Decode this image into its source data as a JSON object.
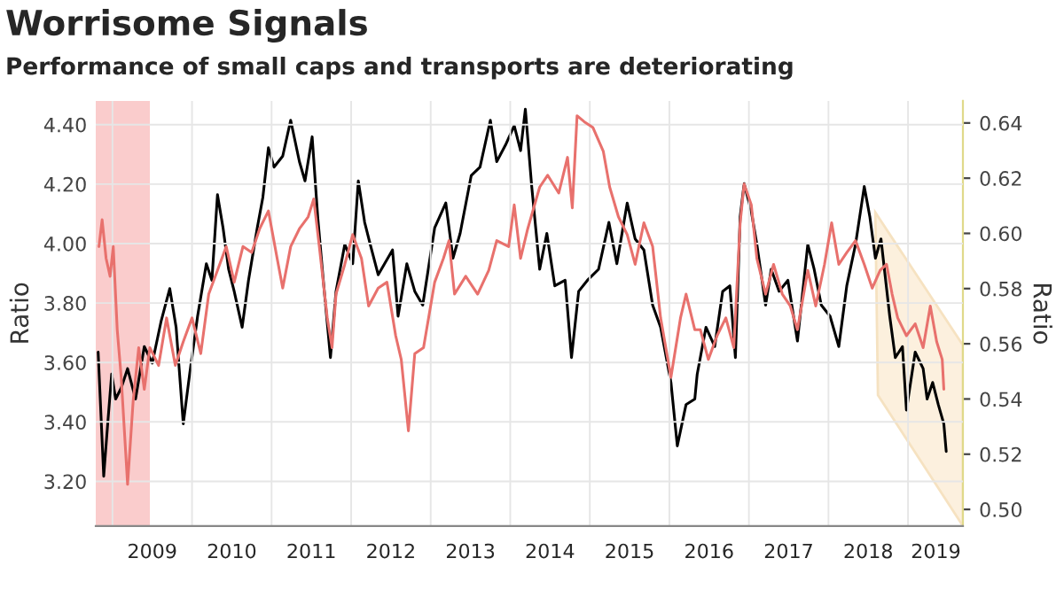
{
  "chart_data": {
    "type": "line",
    "title": "Worrisome Signals",
    "subtitle": "Performance of small caps and transports are deteriorating",
    "ylabel": "Ratio",
    "y2label": "Ratio",
    "xlim": [
      2008.79,
      2019.69
    ],
    "xticks": [
      {
        "value": 2009,
        "label": null
      },
      {
        "value": 2009.5,
        "label": "2009"
      },
      {
        "value": 2010,
        "label": null
      },
      {
        "value": 2010.5,
        "label": "2010"
      },
      {
        "value": 2011,
        "label": null
      },
      {
        "value": 2011.5,
        "label": "2011"
      },
      {
        "value": 2012,
        "label": null
      },
      {
        "value": 2012.5,
        "label": "2012"
      },
      {
        "value": 2013,
        "label": null
      },
      {
        "value": 2013.5,
        "label": "2013"
      },
      {
        "value": 2014,
        "label": null
      },
      {
        "value": 2014.5,
        "label": "2014"
      },
      {
        "value": 2015,
        "label": null
      },
      {
        "value": 2015.5,
        "label": "2015"
      },
      {
        "value": 2016,
        "label": null
      },
      {
        "value": 2016.5,
        "label": "2016"
      },
      {
        "value": 2017,
        "label": null
      },
      {
        "value": 2017.5,
        "label": "2017"
      },
      {
        "value": 2018,
        "label": null
      },
      {
        "value": 2018.5,
        "label": "2018"
      },
      {
        "value": 2019,
        "label": null
      },
      {
        "value": 2019.35,
        "label": "2019"
      }
    ],
    "ylim": [
      3.05,
      4.48
    ],
    "yticks": [
      {
        "value": 3.2,
        "label": "3.20"
      },
      {
        "value": 3.4,
        "label": "3.40"
      },
      {
        "value": 3.6,
        "label": "3.60"
      },
      {
        "value": 3.8,
        "label": "3.80"
      },
      {
        "value": 4.0,
        "label": "4.00"
      },
      {
        "value": 4.2,
        "label": "4.20"
      },
      {
        "value": 4.4,
        "label": "4.40"
      }
    ],
    "y2lim": [
      0.494,
      0.648
    ],
    "y2ticks": [
      {
        "value": 0.5,
        "label": "0.50"
      },
      {
        "value": 0.52,
        "label": "0.52"
      },
      {
        "value": 0.54,
        "label": "0.54"
      },
      {
        "value": 0.56,
        "label": "0.56"
      },
      {
        "value": 0.58,
        "label": "0.58"
      },
      {
        "value": 0.6,
        "label": "0.60"
      },
      {
        "value": 0.62,
        "label": "0.62"
      },
      {
        "value": 0.64,
        "label": "0.64"
      }
    ],
    "bands": [
      {
        "axis": "x",
        "from": 2008.79,
        "to": 2009.47,
        "color": "#f6a3a3"
      }
    ],
    "grid": true,
    "marker": "none",
    "line_style": "solid",
    "series": [
      {
        "color": "#e8716d",
        "x": [
          2008.83,
          2008.87,
          2008.92,
          2008.97,
          2009.01,
          2009.06,
          2009.11,
          2009.19,
          2009.26,
          2009.33,
          2009.4,
          2009.47,
          2009.58,
          2009.68,
          2009.79,
          2009.89,
          2010.0,
          2010.11,
          2010.21,
          2010.32,
          2010.43,
          2010.53,
          2010.64,
          2010.75,
          2010.85,
          2010.96,
          2011.07,
          2011.14,
          2011.24,
          2011.35,
          2011.46,
          2011.53,
          2011.6,
          2011.7,
          2011.76,
          2011.81,
          2011.92,
          2012.02,
          2012.13,
          2012.22,
          2012.34,
          2012.45,
          2012.56,
          2012.63,
          2012.72,
          2012.8,
          2012.91,
          2013.05,
          2013.16,
          2013.23,
          2013.3,
          2013.44,
          2013.59,
          2013.73,
          2013.83,
          2013.98,
          2014.05,
          2014.13,
          2014.22,
          2014.37,
          2014.47,
          2014.61,
          2014.72,
          2014.78,
          2014.84,
          2014.93,
          2015.04,
          2015.17,
          2015.25,
          2015.36,
          2015.47,
          2015.57,
          2015.68,
          2015.79,
          2015.89,
          2016.02,
          2016.14,
          2016.21,
          2016.32,
          2016.39,
          2016.49,
          2016.6,
          2016.71,
          2016.81,
          2016.89,
          2016.94,
          2017.03,
          2017.1,
          2017.21,
          2017.31,
          2017.42,
          2017.52,
          2017.61,
          2017.74,
          2017.84,
          2017.95,
          2018.04,
          2018.13,
          2018.23,
          2018.34,
          2018.45,
          2018.55,
          2018.65,
          2018.73,
          2018.8,
          2018.87,
          2018.98,
          2019.09,
          2019.19,
          2019.28,
          2019.36,
          2019.43,
          2019.45
        ],
        "values": [
          3.99,
          4.08,
          3.95,
          3.89,
          3.99,
          3.71,
          3.55,
          3.19,
          3.47,
          3.65,
          3.51,
          3.65,
          3.59,
          3.75,
          3.59,
          3.67,
          3.75,
          3.63,
          3.83,
          3.91,
          3.99,
          3.87,
          3.99,
          3.97,
          4.05,
          4.11,
          3.95,
          3.85,
          3.99,
          4.05,
          4.09,
          4.15,
          3.99,
          3.75,
          3.65,
          3.83,
          3.93,
          4.03,
          3.95,
          3.79,
          3.85,
          3.87,
          3.69,
          3.61,
          3.37,
          3.63,
          3.65,
          3.87,
          3.95,
          4.01,
          3.83,
          3.89,
          3.83,
          3.91,
          4.01,
          3.99,
          4.13,
          3.95,
          4.05,
          4.19,
          4.23,
          4.17,
          4.29,
          4.12,
          4.43,
          4.41,
          4.39,
          4.31,
          4.19,
          4.09,
          4.03,
          3.93,
          4.07,
          3.99,
          3.75,
          3.55,
          3.75,
          3.83,
          3.71,
          3.71,
          3.61,
          3.69,
          3.75,
          3.65,
          4.07,
          4.2,
          4.13,
          3.95,
          3.83,
          3.93,
          3.83,
          3.79,
          3.71,
          3.91,
          3.79,
          3.93,
          4.07,
          3.93,
          3.97,
          4.01,
          3.93,
          3.85,
          3.91,
          3.93,
          3.83,
          3.75,
          3.69,
          3.73,
          3.65,
          3.79,
          3.67,
          3.61,
          3.51
        ]
      },
      {
        "color": "#000000",
        "axis": "y2",
        "x": [
          2008.82,
          2008.89,
          2008.94,
          2008.99,
          2009.04,
          2009.11,
          2009.19,
          2009.29,
          2009.4,
          2009.5,
          2009.61,
          2009.72,
          2009.8,
          2009.89,
          2009.97,
          2010.07,
          2010.18,
          2010.25,
          2010.32,
          2010.39,
          2010.46,
          2010.53,
          2010.63,
          2010.71,
          2010.82,
          2010.89,
          2010.96,
          2011.03,
          2011.14,
          2011.24,
          2011.35,
          2011.42,
          2011.51,
          2011.58,
          2011.65,
          2011.74,
          2011.81,
          2011.92,
          2012.02,
          2012.09,
          2012.17,
          2012.24,
          2012.34,
          2012.52,
          2012.59,
          2012.7,
          2012.8,
          2012.9,
          2013.05,
          2013.19,
          2013.28,
          2013.37,
          2013.51,
          2013.62,
          2013.75,
          2013.83,
          2013.94,
          2014.05,
          2014.13,
          2014.19,
          2014.27,
          2014.37,
          2014.46,
          2014.56,
          2014.69,
          2014.77,
          2014.86,
          2014.97,
          2015.11,
          2015.24,
          2015.34,
          2015.47,
          2015.57,
          2015.68,
          2015.79,
          2015.89,
          2016.02,
          2016.1,
          2016.21,
          2016.32,
          2016.35,
          2016.46,
          2016.57,
          2016.67,
          2016.76,
          2016.83,
          2016.89,
          2016.94,
          2017.03,
          2017.1,
          2017.21,
          2017.28,
          2017.38,
          2017.49,
          2017.61,
          2017.74,
          2017.82,
          2017.91,
          2018.02,
          2018.13,
          2018.23,
          2018.34,
          2018.45,
          2018.52,
          2018.59,
          2018.66,
          2018.77,
          2018.84,
          2018.93,
          2018.98,
          2019.09,
          2019.19,
          2019.24,
          2019.31,
          2019.38,
          2019.45,
          2019.48
        ],
        "values": [
          0.557,
          0.512,
          0.531,
          0.549,
          0.54,
          0.544,
          0.551,
          0.54,
          0.559,
          0.553,
          0.568,
          0.58,
          0.566,
          0.531,
          0.549,
          0.57,
          0.589,
          0.583,
          0.614,
          0.602,
          0.587,
          0.579,
          0.566,
          0.583,
          0.602,
          0.613,
          0.631,
          0.624,
          0.628,
          0.641,
          0.626,
          0.619,
          0.635,
          0.606,
          0.583,
          0.555,
          0.579,
          0.596,
          0.589,
          0.619,
          0.604,
          0.596,
          0.585,
          0.594,
          0.57,
          0.589,
          0.579,
          0.574,
          0.602,
          0.611,
          0.591,
          0.6,
          0.621,
          0.624,
          0.641,
          0.626,
          0.632,
          0.639,
          0.63,
          0.645,
          0.617,
          0.587,
          0.6,
          0.581,
          0.583,
          0.555,
          0.579,
          0.583,
          0.587,
          0.604,
          0.589,
          0.611,
          0.598,
          0.594,
          0.574,
          0.566,
          0.546,
          0.523,
          0.538,
          0.54,
          0.549,
          0.566,
          0.559,
          0.579,
          0.581,
          0.555,
          0.606,
          0.618,
          0.608,
          0.596,
          0.574,
          0.587,
          0.579,
          0.583,
          0.561,
          0.596,
          0.587,
          0.574,
          0.57,
          0.559,
          0.581,
          0.596,
          0.617,
          0.606,
          0.591,
          0.598,
          0.57,
          0.555,
          0.559,
          0.536,
          0.557,
          0.551,
          0.54,
          0.546,
          0.538,
          0.531,
          0.521
        ]
      }
    ]
  }
}
